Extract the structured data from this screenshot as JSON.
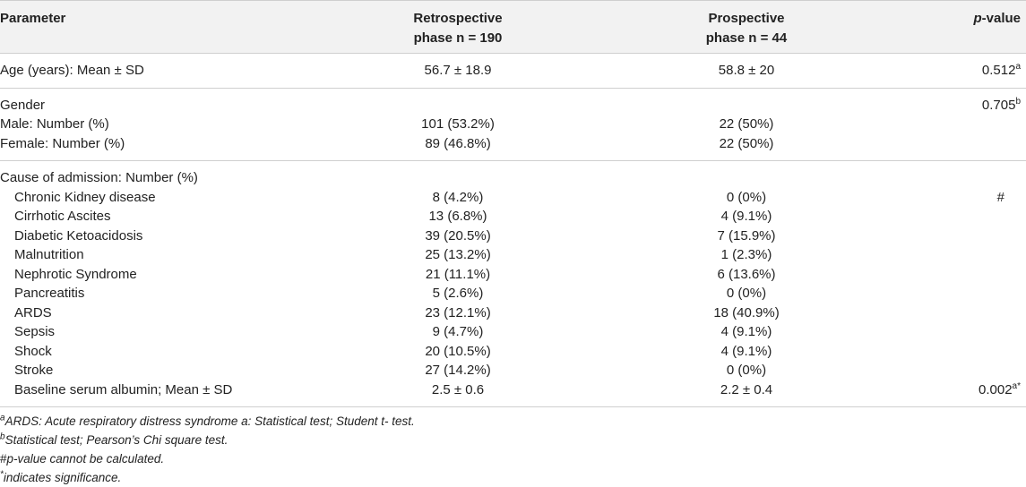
{
  "header": {
    "parameter": "Parameter",
    "retro_line1": "Retrospective",
    "retro_line2": "phase n = 190",
    "pro_line1": "Prospective",
    "pro_line2": "phase n = 44",
    "p_italic": "p",
    "p_rest": "-value"
  },
  "age": {
    "label": "Age (years): Mean ± SD",
    "retro": "56.7 ± 18.9",
    "pro": "58.8 ± 20",
    "p": "0.512",
    "p_sup": "a"
  },
  "gender": {
    "label": "Gender",
    "p": "0.705",
    "p_sup": "b",
    "rows": [
      {
        "label": "Male: Number (%)",
        "retro": "101 (53.2%)",
        "pro": "22 (50%)"
      },
      {
        "label": "Female: Number (%)",
        "retro": "89 (46.8%)",
        "pro": "22 (50%)"
      }
    ]
  },
  "cause": {
    "label": "Cause of admission: Number (%)",
    "rows": [
      {
        "label": "Chronic Kidney disease",
        "retro": "8 (4.2%)",
        "pro": "0 (0%)",
        "p": "#"
      },
      {
        "label": "Cirrhotic Ascites",
        "retro": "13 (6.8%)",
        "pro": "4 (9.1%)",
        "p": ""
      },
      {
        "label": "Diabetic Ketoacidosis",
        "retro": "39 (20.5%)",
        "pro": "7 (15.9%)",
        "p": ""
      },
      {
        "label": "Malnutrition",
        "retro": "25 (13.2%)",
        "pro": "1 (2.3%)",
        "p": ""
      },
      {
        "label": "Nephrotic Syndrome",
        "retro": "21 (11.1%)",
        "pro": "6 (13.6%)",
        "p": ""
      },
      {
        "label": "Pancreatitis",
        "retro": "5 (2.6%)",
        "pro": "0 (0%)",
        "p": ""
      },
      {
        "label": "ARDS",
        "retro": "23 (12.1%)",
        "pro": "18 (40.9%)",
        "p": ""
      },
      {
        "label": "Sepsis",
        "retro": "9 (4.7%)",
        "pro": "4 (9.1%)",
        "p": ""
      },
      {
        "label": "Shock",
        "retro": "20 (10.5%)",
        "pro": "4 (9.1%)",
        "p": ""
      },
      {
        "label": "Stroke",
        "retro": "27 (14.2%)",
        "pro": "0 (0%)",
        "p": ""
      }
    ],
    "albumin": {
      "label": "Baseline serum albumin; Mean ± SD",
      "retro": "2.5 ± 0.6",
      "pro": "2.2 ± 0.4",
      "p": "0.002",
      "p_sup": "a*"
    }
  },
  "footnotes": {
    "n1_sup": "a",
    "n1_text": "ARDS: Acute respiratory distress syndrome a: Statistical test; Student t- test.",
    "n2_sup": "b",
    "n2_text": "Statistical test; Pearson’s Chi square test.",
    "n3_hash": "#",
    "n3_text": "p-value cannot be calculated.",
    "n4_sup": "*",
    "n4_text": "indicates significance."
  }
}
